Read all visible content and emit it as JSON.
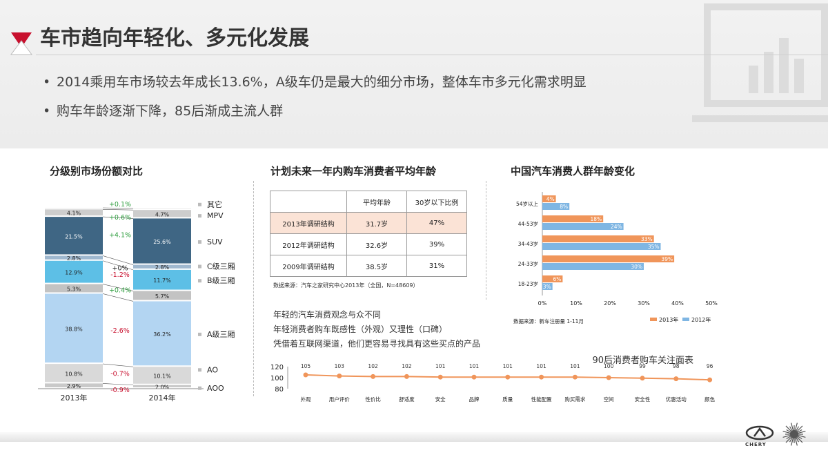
{
  "header": {
    "title": "车市趋向年轻化、多元化发展",
    "bullets": [
      "2014乘用车市场较去年成长13.6%，A级车仍是最大的细分市场，整体车市多元化需求明显",
      "购车年龄逐渐下降，85后渐成主流人群"
    ]
  },
  "sections": {
    "share_title": "分级别市场份额对比",
    "survey_title": "计划未来一年内购车消费者平均年龄",
    "age_title": "中国汽车消费人群年龄变化"
  },
  "survey": {
    "headers": [
      "",
      "平均年龄",
      "30岁以下比例"
    ],
    "rows": [
      [
        "2013年调研结构",
        "31.7岁",
        "47%"
      ],
      [
        "2012年调研结构",
        "32.6岁",
        "39%"
      ],
      [
        "2009年调研结构",
        "38.5岁",
        "31%"
      ]
    ],
    "source": "数据来源：汽车之家研究中心2013年（全国，N=48609）",
    "notes": [
      "年轻的汽车消费观念与众不同",
      "年轻消费者购车既感性（外观）又理性（口碑）",
      "凭借着互联网渠道，他们更容易寻找具有这些买点的产品"
    ]
  },
  "age_source": "数据来源：新车注册量 1-11月",
  "chart_data": [
    {
      "type": "bar",
      "stacked": true,
      "categories": [
        "2013年",
        "2014年"
      ],
      "series": [
        {
          "name": "AOO",
          "values": [
            2.9,
            2.0
          ],
          "labels": [
            "2.9%",
            "2.0%"
          ],
          "color": "#c9c9c9"
        },
        {
          "name": "AO",
          "values": [
            10.8,
            10.1
          ],
          "labels": [
            "10.8%",
            "10.1%"
          ],
          "color": "#d9d9d9"
        },
        {
          "name": "A级三厢",
          "values": [
            38.8,
            36.2
          ],
          "labels": [
            "38.8%",
            "36.2%"
          ],
          "color": "#b3d5f2"
        },
        {
          "name": "",
          "values": [
            5.3,
            5.7
          ],
          "labels": [
            "5.3%",
            "5.7%"
          ],
          "color": "#c3c3c3"
        },
        {
          "name": "B级三厢",
          "values": [
            12.9,
            11.7
          ],
          "labels": [
            "12.9%",
            "11.7%"
          ],
          "color": "#5dbfe6"
        },
        {
          "name": "C级三厢",
          "values": [
            2.8,
            2.8
          ],
          "labels": [
            "2.8%",
            "2.8%"
          ],
          "color": "#9fb8cf"
        },
        {
          "name": "SUV",
          "values": [
            21.5,
            25.6
          ],
          "labels": [
            "21.5%",
            "25.6%"
          ],
          "color": "#3f6684"
        },
        {
          "name": "MPV",
          "values": [
            4.1,
            4.7
          ],
          "labels": [
            "4.1%",
            "4.7%"
          ],
          "color": "#cdcdcd"
        },
        {
          "name": "其它",
          "values": [
            0.9,
            0.9
          ],
          "labels": [
            "",
            ""
          ],
          "color": "#ececec"
        }
      ],
      "changes": [
        {
          "label": "+0.1%",
          "color": "#2e9e3e",
          "series": "其它"
        },
        {
          "label": "+0.6%",
          "color": "#2e9e3e",
          "series": "MPV"
        },
        {
          "label": "+4.1%",
          "color": "#2e9e3e",
          "series": "SUV"
        },
        {
          "label": "+0%",
          "color": "#222222",
          "series": "C级三厢"
        },
        {
          "label": "-1.2%",
          "color": "#c8102e",
          "series": "B级三厢"
        },
        {
          "label": "+0.4%",
          "color": "#2e9e3e",
          "series": ""
        },
        {
          "label": "-2.6%",
          "color": "#c8102e",
          "series": "A级三厢"
        },
        {
          "label": "-0.7%",
          "color": "#c8102e",
          "series": "AO"
        },
        {
          "label": "-0.9%",
          "color": "#c8102e",
          "series": "AOO"
        }
      ]
    },
    {
      "type": "bar",
      "orientation": "horizontal",
      "categories": [
        "54岁以上",
        "44-53岁",
        "34-43岁",
        "24-33岁",
        "18-23岁"
      ],
      "series": [
        {
          "name": "2013年",
          "values": [
            4,
            18,
            33,
            39,
            6
          ],
          "color": "#f0955a"
        },
        {
          "name": "2012年",
          "values": [
            8,
            24,
            35,
            30,
            3
          ],
          "color": "#7fb6e3"
        }
      ],
      "xlim": [
        0,
        50
      ],
      "xticks": [
        "0%",
        "10%",
        "20%",
        "30%",
        "40%",
        "50%"
      ],
      "legend": "bottom-right"
    },
    {
      "type": "line",
      "title": "90后消费者购车关注面表",
      "categories": [
        "外观",
        "用户评价",
        "性价比",
        "舒适度",
        "安全",
        "品牌",
        "质量",
        "性能配置",
        "购买需求",
        "空间",
        "安全性",
        "优惠活动",
        "颜色"
      ],
      "values": [
        105,
        103,
        102,
        102,
        101,
        101,
        101,
        101,
        101,
        100,
        99,
        98,
        96
      ],
      "ylim": [
        80,
        120
      ],
      "yticks": [
        "120",
        "100",
        "80"
      ],
      "color": "#f0955a"
    }
  ],
  "logo": {
    "brand": "CHERY"
  }
}
